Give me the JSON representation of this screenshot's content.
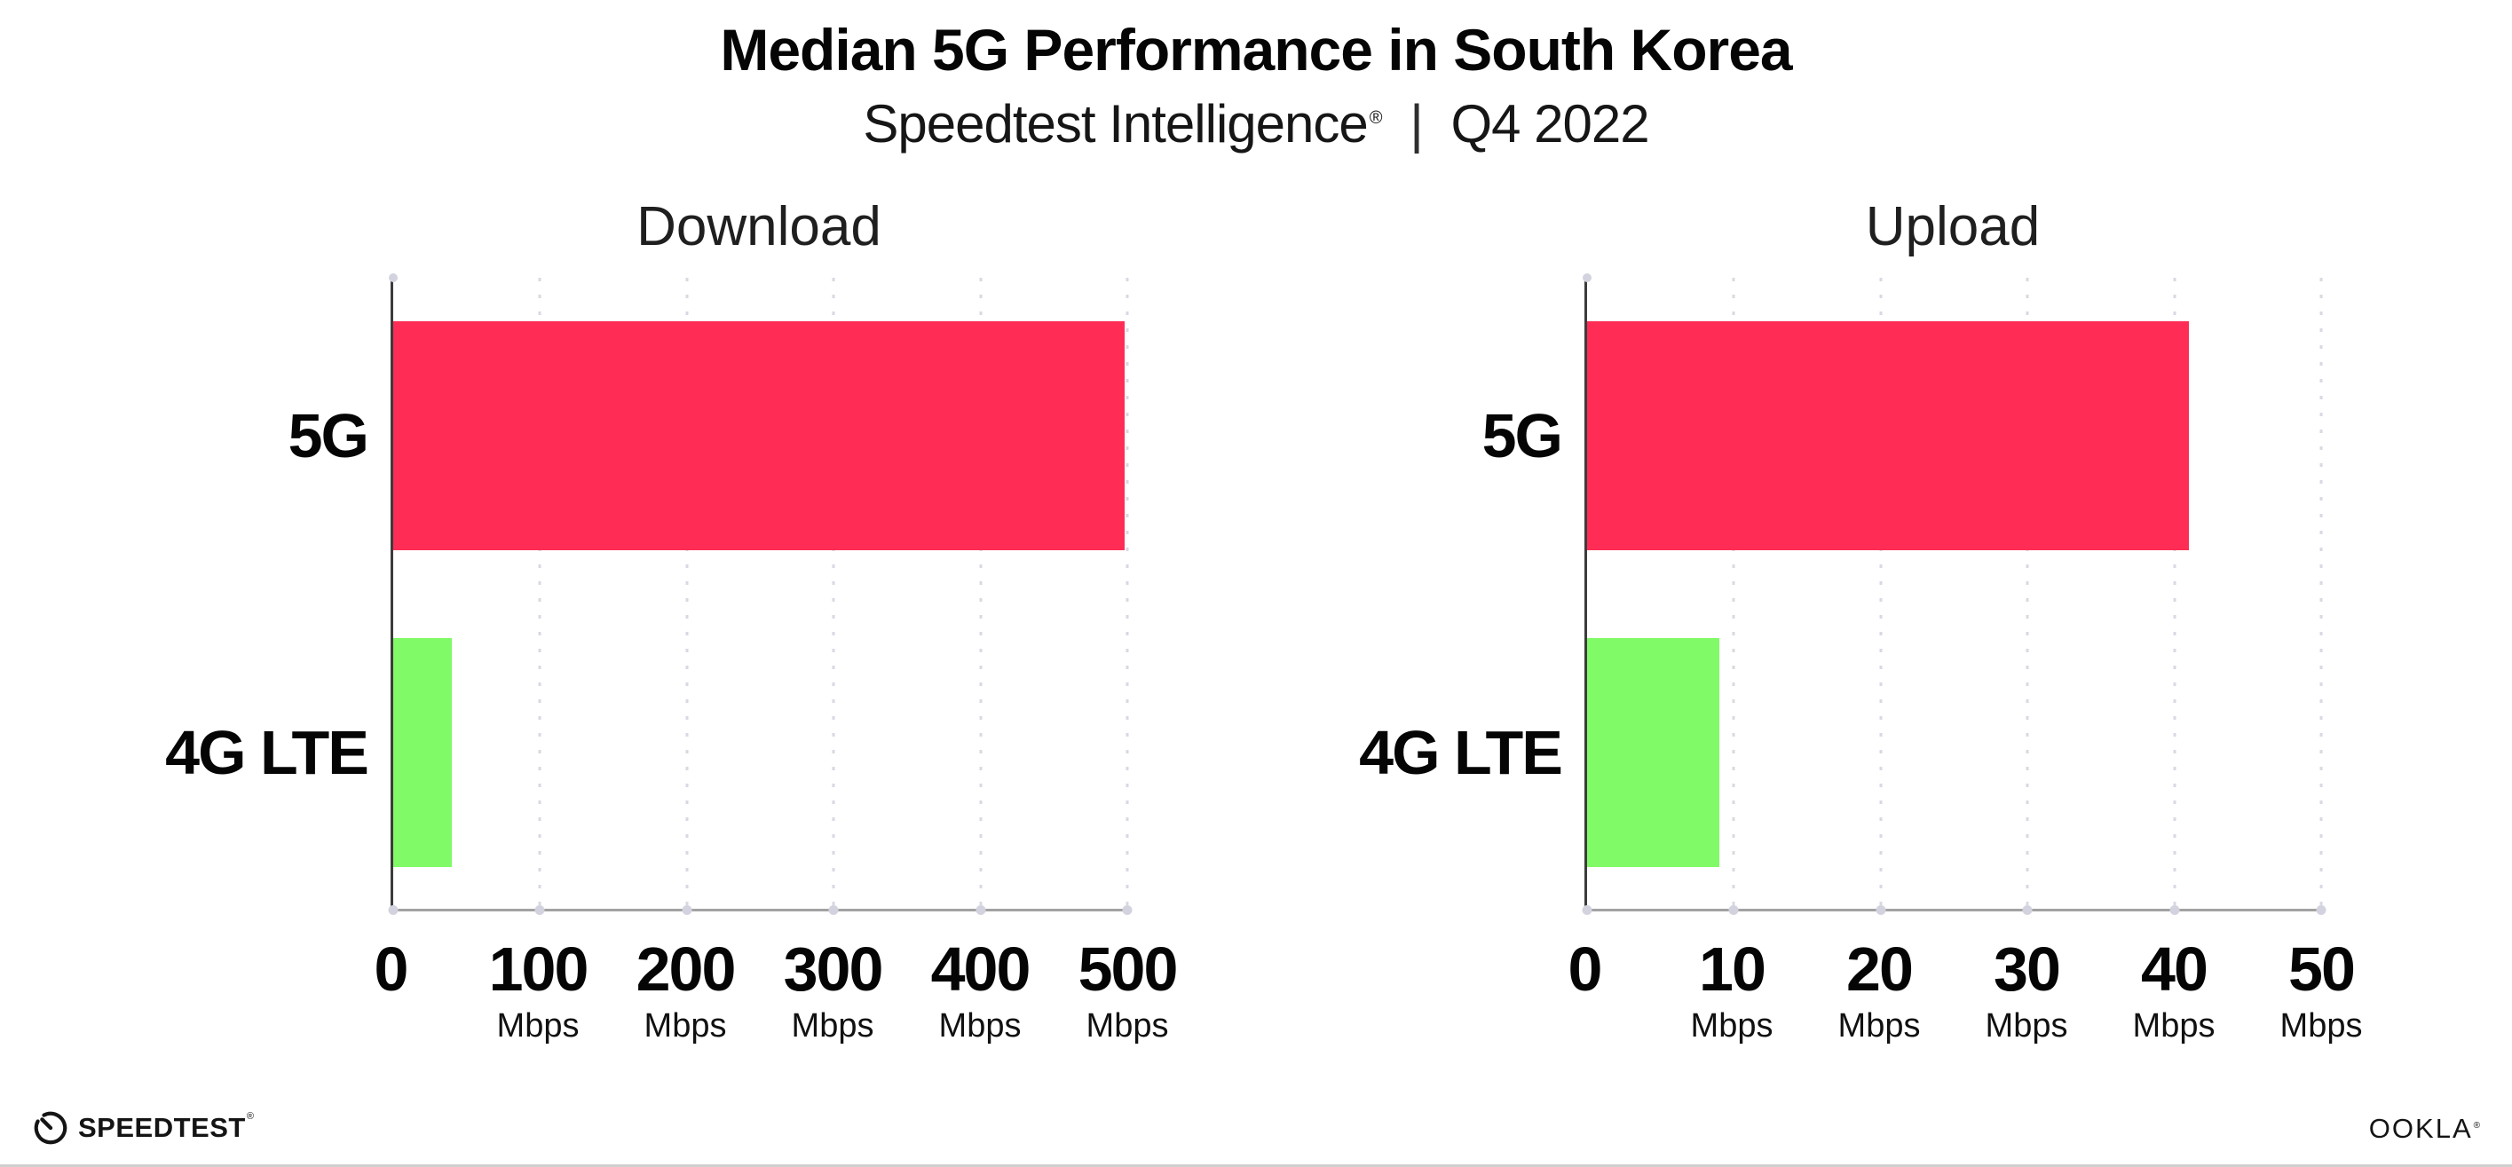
{
  "page": {
    "title": "Median 5G Performance in South Korea",
    "subtitle": {
      "brand": "Speedtest Intelligence",
      "registered_mark": "®",
      "separator": "|",
      "period": "Q4 2022"
    }
  },
  "chart_data": [
    {
      "type": "bar",
      "orientation": "horizontal",
      "title": "Download",
      "categories": [
        "5G",
        "4G LTE"
      ],
      "values": [
        498,
        40
      ],
      "unit": "Mbps",
      "xlabel": "",
      "ylabel": "",
      "xlim": [
        0,
        500
      ],
      "xticks": [
        0,
        100,
        200,
        300,
        400,
        500
      ],
      "bar_colors": [
        "#FF2D55",
        "#80FA66"
      ],
      "grid": "vertical-dotted",
      "legend_position": "none"
    },
    {
      "type": "bar",
      "orientation": "horizontal",
      "title": "Upload",
      "categories": [
        "5G",
        "4G LTE"
      ],
      "values": [
        41,
        9
      ],
      "unit": "Mbps",
      "xlabel": "",
      "ylabel": "",
      "xlim": [
        0,
        50
      ],
      "xticks": [
        0,
        10,
        20,
        30,
        40,
        50
      ],
      "bar_colors": [
        "#FF2D55",
        "#80FA66"
      ],
      "grid": "vertical-dotted",
      "legend_position": "none"
    }
  ],
  "footer": {
    "speedtest_logo_text": "SPEEDTEST",
    "speedtest_trademark": "®",
    "ookla_logo_text": "OOKLA",
    "ookla_registered": "®"
  },
  "colors": {
    "bar_5g": "#FF2D55",
    "bar_4g_lte": "#80FA66",
    "text_primary": "#0B0B0B",
    "gridline": "#D8D9E2",
    "axis_line": "#A2A2A2",
    "axis_spine": "#3C3C3C"
  }
}
